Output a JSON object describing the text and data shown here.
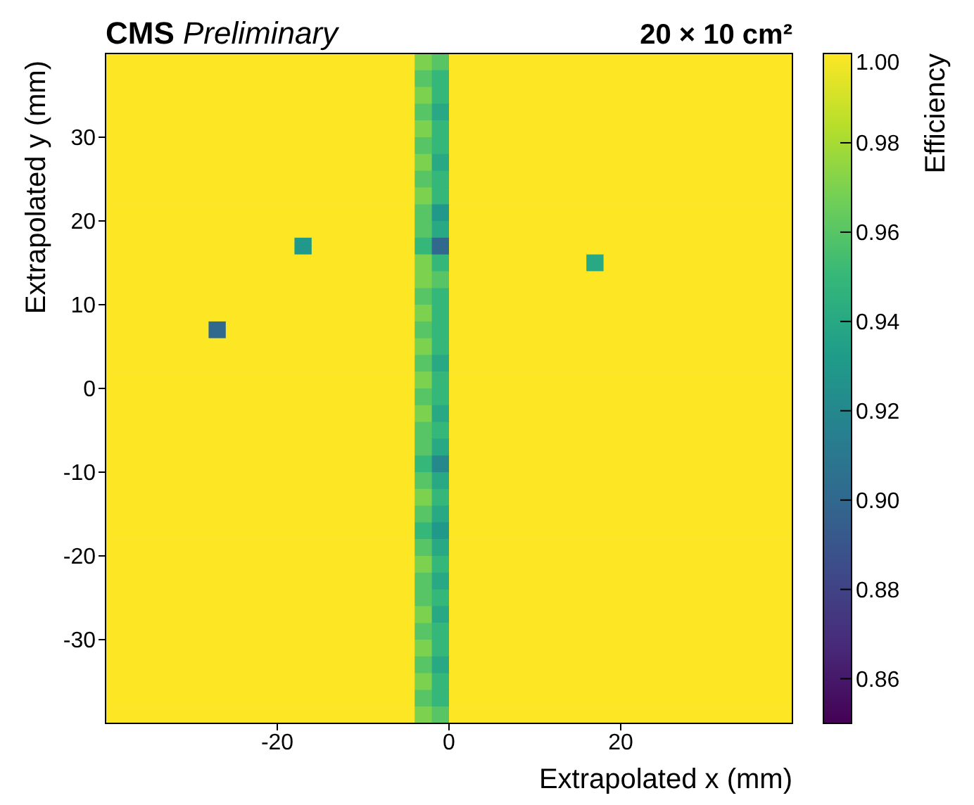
{
  "chart_data": {
    "type": "heatmap",
    "title": "CMS Preliminary",
    "subtitle": "20 × 10 cm²",
    "xlabel": "Extrapolated x (mm)",
    "ylabel": "Extrapolated y (mm)",
    "clabel": "Efficiency",
    "xlim": [
      -40,
      40
    ],
    "ylim": [
      -40,
      40
    ],
    "xticks": [
      -20,
      0,
      20
    ],
    "yticks": [
      -30,
      -20,
      -10,
      0,
      10,
      20,
      30
    ],
    "clim": [
      0.85,
      1.0
    ],
    "cticks": [
      0.86,
      0.88,
      {
        "value": 0.9,
        "label": "0.90"
      },
      0.92,
      0.94,
      0.96,
      0.98,
      {
        "value": 1.0,
        "label": "1.00"
      }
    ],
    "cells": [
      [
        1,
        1,
        1,
        1,
        1,
        1,
        1,
        1,
        1,
        1,
        1,
        1,
        1,
        1,
        1,
        1,
        1,
        1,
        0.97,
        0.96,
        1,
        1,
        1,
        1,
        1,
        1,
        1,
        1,
        1,
        1,
        1,
        1,
        1,
        1,
        1,
        1,
        1,
        1,
        1,
        1
      ],
      [
        1,
        1,
        1,
        1,
        1,
        1,
        1,
        1,
        1,
        1,
        1,
        1,
        1,
        1,
        1,
        1,
        1,
        1,
        0.96,
        0.95,
        1,
        1,
        1,
        1,
        1,
        1,
        1,
        1,
        1,
        1,
        1,
        1,
        1,
        1,
        1,
        1,
        1,
        1,
        1,
        1
      ],
      [
        1,
        1,
        1,
        1,
        1,
        1,
        1,
        1,
        1,
        1,
        1,
        1,
        1,
        1,
        1,
        1,
        1,
        1,
        0.97,
        0.95,
        1,
        1,
        1,
        1,
        1,
        1,
        1,
        1,
        1,
        1,
        1,
        1,
        1,
        1,
        1,
        1,
        1,
        1,
        1,
        1
      ],
      [
        1,
        1,
        1,
        1,
        1,
        1,
        1,
        1,
        1,
        1,
        1,
        1,
        1,
        1,
        1,
        1,
        1,
        1,
        0.96,
        0.94,
        1,
        1,
        1,
        1,
        1,
        1,
        1,
        1,
        1,
        1,
        1,
        1,
        1,
        1,
        1,
        1,
        1,
        1,
        1,
        1
      ],
      [
        1,
        1,
        1,
        1,
        1,
        1,
        1,
        1,
        1,
        1,
        1,
        1,
        1,
        1,
        1,
        1,
        1,
        1,
        0.97,
        0.95,
        1,
        1,
        1,
        1,
        1,
        1,
        1,
        1,
        1,
        1,
        1,
        1,
        1,
        1,
        1,
        1,
        1,
        1,
        1,
        1
      ],
      [
        1,
        1,
        1,
        1,
        1,
        1,
        1,
        1,
        1,
        1,
        1,
        1,
        1,
        1,
        1,
        1,
        1,
        1,
        0.96,
        0.95,
        1,
        1,
        1,
        1,
        1,
        1,
        1,
        1,
        1,
        1,
        1,
        1,
        1,
        1,
        1,
        1,
        1,
        1,
        1,
        1
      ],
      [
        1,
        1,
        1,
        1,
        1,
        1,
        1,
        1,
        1,
        1,
        1,
        1,
        1,
        1,
        1,
        1,
        1,
        1,
        0.97,
        0.94,
        1,
        1,
        1,
        1,
        1,
        1,
        1,
        1,
        1,
        1,
        1,
        1,
        1,
        1,
        1,
        1,
        1,
        1,
        1,
        1
      ],
      [
        1,
        1,
        1,
        1,
        1,
        1,
        1,
        1,
        1,
        1,
        1,
        1,
        1,
        1,
        1,
        1,
        1,
        1,
        0.96,
        0.95,
        1,
        1,
        1,
        1,
        1,
        1,
        1,
        1,
        1,
        1,
        1,
        1,
        1,
        1,
        1,
        1,
        1,
        1,
        1,
        1
      ],
      [
        1,
        1,
        1,
        1,
        1,
        1,
        1,
        1,
        1,
        1,
        1,
        1,
        1,
        1,
        1,
        1,
        1,
        1,
        0.97,
        0.95,
        1,
        1,
        1,
        1,
        1,
        1,
        1,
        1,
        1,
        1,
        1,
        1,
        1,
        1,
        1,
        1,
        1,
        1,
        1,
        1
      ],
      [
        1,
        1,
        1,
        1,
        1,
        1,
        1,
        1,
        1,
        1,
        1,
        1,
        1,
        1,
        1,
        1,
        1,
        1,
        0.96,
        0.93,
        1,
        1,
        1,
        1,
        1,
        1,
        1,
        1,
        1,
        1,
        1,
        1,
        1,
        1,
        1,
        1,
        1,
        1,
        1,
        1
      ],
      [
        1,
        1,
        1,
        1,
        1,
        1,
        1,
        1,
        1,
        1,
        1,
        1,
        1,
        1,
        1,
        1,
        1,
        1,
        0.96,
        0.94,
        1,
        1,
        1,
        1,
        1,
        1,
        1,
        1,
        1,
        1,
        1,
        1,
        1,
        1,
        1,
        1,
        1,
        1,
        1,
        1
      ],
      [
        1,
        1,
        1,
        1,
        1,
        1,
        1,
        1,
        1,
        1,
        1,
        0.93,
        1,
        1,
        1,
        1,
        1,
        1,
        0.95,
        0.9,
        1,
        1,
        1,
        1,
        1,
        1,
        1,
        1,
        1,
        1,
        1,
        1,
        1,
        1,
        1,
        1,
        1,
        1,
        1,
        1
      ],
      [
        1,
        1,
        1,
        1,
        1,
        1,
        1,
        1,
        1,
        1,
        1,
        1,
        1,
        1,
        1,
        1,
        1,
        1,
        0.97,
        0.95,
        1,
        1,
        1,
        1,
        1,
        1,
        1,
        1,
        0.94,
        1,
        1,
        1,
        1,
        1,
        1,
        1,
        1,
        1,
        1,
        1
      ],
      [
        1,
        1,
        1,
        1,
        1,
        1,
        1,
        1,
        1,
        1,
        1,
        1,
        1,
        1,
        1,
        1,
        1,
        1,
        0.97,
        0.96,
        1,
        1,
        1,
        1,
        1,
        1,
        1,
        1,
        1,
        1,
        1,
        1,
        1,
        1,
        1,
        1,
        1,
        1,
        1,
        1
      ],
      [
        1,
        1,
        1,
        1,
        1,
        1,
        1,
        1,
        1,
        1,
        1,
        1,
        1,
        1,
        1,
        1,
        1,
        1,
        0.96,
        0.95,
        1,
        1,
        1,
        1,
        1,
        1,
        1,
        1,
        1,
        1,
        1,
        1,
        1,
        1,
        1,
        1,
        1,
        1,
        1,
        1
      ],
      [
        1,
        1,
        1,
        1,
        1,
        1,
        1,
        1,
        1,
        1,
        1,
        1,
        1,
        1,
        1,
        1,
        1,
        1,
        0.97,
        0.95,
        1,
        1,
        1,
        1,
        1,
        1,
        1,
        1,
        1,
        1,
        1,
        1,
        1,
        1,
        1,
        1,
        1,
        1,
        1,
        1
      ],
      [
        1,
        1,
        1,
        1,
        1,
        1,
        0.9,
        1,
        1,
        1,
        1,
        1,
        1,
        1,
        1,
        1,
        1,
        1,
        0.96,
        0.95,
        1,
        1,
        1,
        1,
        1,
        1,
        1,
        1,
        1,
        1,
        1,
        1,
        1,
        1,
        1,
        1,
        1,
        1,
        1,
        1
      ],
      [
        1,
        1,
        1,
        1,
        1,
        1,
        1,
        1,
        1,
        1,
        1,
        1,
        1,
        1,
        1,
        1,
        1,
        1,
        0.97,
        0.95,
        1,
        1,
        1,
        1,
        1,
        1,
        1,
        1,
        1,
        1,
        1,
        1,
        1,
        1,
        1,
        1,
        1,
        1,
        1,
        1
      ],
      [
        1,
        1,
        1,
        1,
        1,
        1,
        1,
        1,
        1,
        1,
        1,
        1,
        1,
        1,
        1,
        1,
        1,
        1,
        0.96,
        0.94,
        1,
        1,
        1,
        1,
        1,
        1,
        1,
        1,
        1,
        1,
        1,
        1,
        1,
        1,
        1,
        1,
        1,
        1,
        1,
        1
      ],
      [
        1,
        1,
        1,
        1,
        1,
        1,
        1,
        1,
        1,
        1,
        1,
        1,
        1,
        1,
        1,
        1,
        1,
        1,
        0.97,
        0.95,
        1,
        1,
        1,
        1,
        1,
        1,
        1,
        1,
        1,
        1,
        1,
        1,
        1,
        1,
        1,
        1,
        1,
        1,
        1,
        1
      ],
      [
        1,
        1,
        1,
        1,
        1,
        1,
        1,
        1,
        1,
        1,
        1,
        1,
        1,
        1,
        1,
        1,
        1,
        1,
        0.96,
        0.95,
        1,
        1,
        1,
        1,
        1,
        1,
        1,
        1,
        1,
        1,
        1,
        1,
        1,
        1,
        1,
        1,
        1,
        1,
        1,
        1
      ],
      [
        1,
        1,
        1,
        1,
        1,
        1,
        1,
        1,
        1,
        1,
        1,
        1,
        1,
        1,
        1,
        1,
        1,
        1,
        0.97,
        0.94,
        1,
        1,
        1,
        1,
        1,
        1,
        1,
        1,
        1,
        1,
        1,
        1,
        1,
        1,
        1,
        1,
        1,
        1,
        1,
        1
      ],
      [
        1,
        1,
        1,
        1,
        1,
        1,
        1,
        1,
        1,
        1,
        1,
        1,
        1,
        1,
        1,
        1,
        1,
        1,
        0.96,
        0.95,
        1,
        1,
        1,
        1,
        1,
        1,
        1,
        1,
        1,
        1,
        1,
        1,
        1,
        1,
        1,
        1,
        1,
        1,
        1,
        1
      ],
      [
        1,
        1,
        1,
        1,
        1,
        1,
        1,
        1,
        1,
        1,
        1,
        1,
        1,
        1,
        1,
        1,
        1,
        1,
        0.96,
        0.94,
        1,
        1,
        1,
        1,
        1,
        1,
        1,
        1,
        1,
        1,
        1,
        1,
        1,
        1,
        1,
        1,
        1,
        1,
        1,
        1
      ],
      [
        1,
        1,
        1,
        1,
        1,
        1,
        1,
        1,
        1,
        1,
        1,
        1,
        1,
        1,
        1,
        1,
        1,
        1,
        0.95,
        0.92,
        1,
        1,
        1,
        1,
        1,
        1,
        1,
        1,
        1,
        1,
        1,
        1,
        1,
        1,
        1,
        1,
        1,
        1,
        1,
        1
      ],
      [
        1,
        1,
        1,
        1,
        1,
        1,
        1,
        1,
        1,
        1,
        1,
        1,
        1,
        1,
        1,
        1,
        1,
        1,
        0.96,
        0.94,
        1,
        1,
        1,
        1,
        1,
        1,
        1,
        1,
        1,
        1,
        1,
        1,
        1,
        1,
        1,
        1,
        1,
        1,
        1,
        1
      ],
      [
        1,
        1,
        1,
        1,
        1,
        1,
        1,
        1,
        1,
        1,
        1,
        1,
        1,
        1,
        1,
        1,
        1,
        1,
        0.97,
        0.95,
        1,
        1,
        1,
        1,
        1,
        1,
        1,
        1,
        1,
        1,
        1,
        1,
        1,
        1,
        1,
        1,
        1,
        1,
        1,
        1
      ],
      [
        1,
        1,
        1,
        1,
        1,
        1,
        1,
        1,
        1,
        1,
        1,
        1,
        1,
        1,
        1,
        1,
        1,
        1,
        0.96,
        0.94,
        1,
        1,
        1,
        1,
        1,
        1,
        1,
        1,
        1,
        1,
        1,
        1,
        1,
        1,
        1,
        1,
        1,
        1,
        1,
        1
      ],
      [
        1,
        1,
        1,
        1,
        1,
        1,
        1,
        1,
        1,
        1,
        1,
        1,
        1,
        1,
        1,
        1,
        1,
        1,
        0.95,
        0.93,
        1,
        1,
        1,
        1,
        1,
        1,
        1,
        1,
        1,
        1,
        1,
        1,
        1,
        1,
        1,
        1,
        1,
        1,
        1,
        1
      ],
      [
        1,
        1,
        1,
        1,
        1,
        1,
        1,
        1,
        1,
        1,
        1,
        1,
        1,
        1,
        1,
        1,
        1,
        1,
        0.96,
        0.94,
        1,
        1,
        1,
        1,
        1,
        1,
        1,
        1,
        1,
        1,
        1,
        1,
        1,
        1,
        1,
        1,
        1,
        1,
        1,
        1
      ],
      [
        1,
        1,
        1,
        1,
        1,
        1,
        1,
        1,
        1,
        1,
        1,
        1,
        1,
        1,
        1,
        1,
        1,
        1,
        0.97,
        0.95,
        1,
        1,
        1,
        1,
        1,
        1,
        1,
        1,
        1,
        1,
        1,
        1,
        1,
        1,
        1,
        1,
        1,
        1,
        1,
        1
      ],
      [
        1,
        1,
        1,
        1,
        1,
        1,
        1,
        1,
        1,
        1,
        1,
        1,
        1,
        1,
        1,
        1,
        1,
        1,
        0.96,
        0.94,
        1,
        1,
        1,
        1,
        1,
        1,
        1,
        1,
        1,
        1,
        1,
        1,
        1,
        1,
        1,
        1,
        1,
        1,
        1,
        1
      ],
      [
        1,
        1,
        1,
        1,
        1,
        1,
        1,
        1,
        1,
        1,
        1,
        1,
        1,
        1,
        1,
        1,
        1,
        1,
        0.96,
        0.95,
        1,
        1,
        1,
        1,
        1,
        1,
        1,
        1,
        1,
        1,
        1,
        1,
        1,
        1,
        1,
        1,
        1,
        1,
        1,
        1
      ],
      [
        1,
        1,
        1,
        1,
        1,
        1,
        1,
        1,
        1,
        1,
        1,
        1,
        1,
        1,
        1,
        1,
        1,
        1,
        0.97,
        0.94,
        1,
        1,
        1,
        1,
        1,
        1,
        1,
        1,
        1,
        1,
        1,
        1,
        1,
        1,
        1,
        1,
        1,
        1,
        1,
        1
      ],
      [
        1,
        1,
        1,
        1,
        1,
        1,
        1,
        1,
        1,
        1,
        1,
        1,
        1,
        1,
        1,
        1,
        1,
        1,
        0.96,
        0.95,
        1,
        1,
        1,
        1,
        1,
        1,
        1,
        1,
        1,
        1,
        1,
        1,
        1,
        1,
        1,
        1,
        1,
        1,
        1,
        1
      ],
      [
        1,
        1,
        1,
        1,
        1,
        1,
        1,
        1,
        1,
        1,
        1,
        1,
        1,
        1,
        1,
        1,
        1,
        1,
        0.97,
        0.95,
        1,
        1,
        1,
        1,
        1,
        1,
        1,
        1,
        1,
        1,
        1,
        1,
        1,
        1,
        1,
        1,
        1,
        1,
        1,
        1
      ],
      [
        1,
        1,
        1,
        1,
        1,
        1,
        1,
        1,
        1,
        1,
        1,
        1,
        1,
        1,
        1,
        1,
        1,
        1,
        0.96,
        0.94,
        1,
        1,
        1,
        1,
        1,
        1,
        1,
        1,
        1,
        1,
        1,
        1,
        1,
        1,
        1,
        1,
        1,
        1,
        1,
        1
      ],
      [
        1,
        1,
        1,
        1,
        1,
        1,
        1,
        1,
        1,
        1,
        1,
        1,
        1,
        1,
        1,
        1,
        1,
        1,
        0.97,
        0.95,
        1,
        1,
        1,
        1,
        1,
        1,
        1,
        1,
        1,
        1,
        1,
        1,
        1,
        1,
        1,
        1,
        1,
        1,
        1,
        1
      ],
      [
        1,
        1,
        1,
        1,
        1,
        1,
        1,
        1,
        1,
        1,
        1,
        1,
        1,
        1,
        1,
        1,
        1,
        1,
        0.96,
        0.95,
        1,
        1,
        1,
        1,
        1,
        1,
        1,
        1,
        1,
        1,
        1,
        1,
        1,
        1,
        1,
        1,
        1,
        1,
        1,
        1
      ],
      [
        1,
        1,
        1,
        1,
        1,
        1,
        1,
        1,
        1,
        1,
        1,
        1,
        1,
        1,
        1,
        1,
        1,
        1,
        0.97,
        0.96,
        1,
        1,
        1,
        1,
        1,
        1,
        1,
        1,
        1,
        1,
        1,
        1,
        1,
        1,
        1,
        1,
        1,
        1,
        1,
        1
      ]
    ]
  }
}
